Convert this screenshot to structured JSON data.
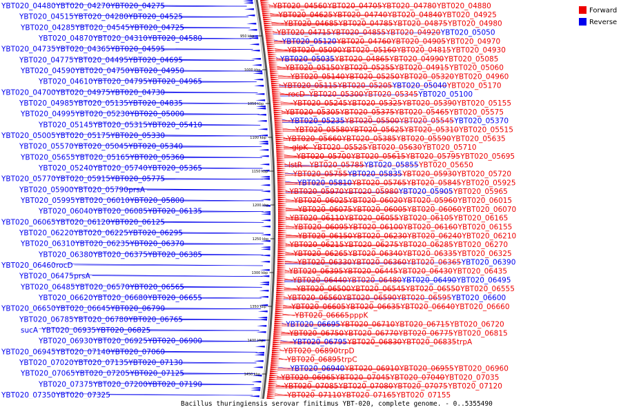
{
  "caption": "Bacillus thuringiensis serovar finitimus YBT-020, complete genome. - 0..5355490",
  "legend": [
    {
      "label": "Forward",
      "color": "#ee0000"
    },
    {
      "label": "Reverse",
      "color": "#0000ee"
    }
  ],
  "ticks": [
    "950 kbp",
    "1000 kbp",
    "1050 kbp",
    "1100 kbp",
    "1150 kbp",
    "1200 kbp",
    "1250 kbp",
    "1300 kbp",
    "1350 kbp",
    "1400 kbp",
    "1450 kbp"
  ],
  "labels": [
    {
      "t": "YBT020_04560",
      "s": "f"
    },
    {
      "t": "YBT020_04705",
      "s": "f"
    },
    {
      "t": "YBT020_04780",
      "s": "f"
    },
    {
      "t": "YBT020_04880",
      "s": "f"
    },
    {
      "t": "YBT020_04625",
      "s": "f"
    },
    {
      "t": "YBT020_04740",
      "s": "f"
    },
    {
      "t": "YBT020_04840",
      "s": "f"
    },
    {
      "t": "YBT020_04925",
      "s": "f"
    },
    {
      "t": "YBT020_04685",
      "s": "f"
    },
    {
      "t": "YBT020_04785",
      "s": "f"
    },
    {
      "t": "YBT020_04875",
      "s": "f"
    },
    {
      "t": "YBT020_04980",
      "s": "f"
    },
    {
      "t": "YBT020_04715",
      "s": "f"
    },
    {
      "t": "YBT020_04855",
      "s": "f"
    },
    {
      "t": "YBT020_04920",
      "s": "f"
    },
    {
      "t": "YBT020_05050",
      "s": "r"
    },
    {
      "t": "YBT020_05120",
      "s": "r"
    },
    {
      "t": "YBT020_04760",
      "s": "f"
    },
    {
      "t": "YBT020_04905",
      "s": "f"
    },
    {
      "t": "YBT020_04970",
      "s": "f"
    },
    {
      "t": "YBT020_05090",
      "s": "f"
    },
    {
      "t": "YBT020_05160",
      "s": "f"
    },
    {
      "t": "YBT020_04815",
      "s": "f"
    },
    {
      "t": "YBT020_04930",
      "s": "f"
    },
    {
      "t": "YBT020_05035",
      "s": "r"
    },
    {
      "t": "YBT020_04865",
      "s": "f"
    },
    {
      "t": "YBT020_04990",
      "s": "f"
    },
    {
      "t": "YBT020_05085",
      "s": "f"
    },
    {
      "t": "YBT020_05150",
      "s": "f"
    },
    {
      "t": "YBT020_05255",
      "s": "f"
    },
    {
      "t": "YBT020_04915",
      "s": "f"
    },
    {
      "t": "YBT020_05060",
      "s": "f"
    },
    {
      "t": "YBT020_05140",
      "s": "f"
    },
    {
      "t": "YBT020_05250",
      "s": "f"
    },
    {
      "t": "YBT020_05320",
      "s": "f"
    },
    {
      "t": "YBT020_04960",
      "s": "f"
    },
    {
      "t": "YBT020_05115",
      "s": "f"
    },
    {
      "t": "YBT020_05205",
      "s": "f"
    },
    {
      "t": "YBT020_05040",
      "s": "r"
    },
    {
      "t": "YBT020_05170",
      "s": "f"
    },
    {
      "t": "rocD",
      "s": "f"
    },
    {
      "t": "YBT020_05300",
      "s": "f"
    },
    {
      "t": "YBT020_05345",
      "s": "f"
    },
    {
      "t": "YBT020_05100",
      "s": "r"
    },
    {
      "t": "YBT020_05245",
      "s": "f"
    },
    {
      "t": "YBT020_05325",
      "s": "f"
    },
    {
      "t": "YBT020_05390",
      "s": "f"
    },
    {
      "t": "YBT020_05155",
      "s": "f"
    },
    {
      "t": "YBT020_05305",
      "s": "f"
    },
    {
      "t": "YBT020_05375",
      "s": "f"
    },
    {
      "t": "YBT020_05465",
      "s": "f"
    },
    {
      "t": "YBT020_05575",
      "s": "f"
    },
    {
      "t": "YBT020_05235",
      "s": "r"
    },
    {
      "t": "YBT020_05500",
      "s": "f"
    },
    {
      "t": "YBT020_05545",
      "s": "f"
    },
    {
      "t": "YBT020_05370",
      "s": "r"
    },
    {
      "t": "YBT020_05580",
      "s": "f"
    },
    {
      "t": "YBT020_05625",
      "s": "f"
    },
    {
      "t": "YBT020_05310",
      "s": "f"
    },
    {
      "t": "YBT020_05515",
      "s": "f"
    },
    {
      "t": "YBT020_05660",
      "s": "f"
    },
    {
      "t": "YBT020_05385",
      "s": "f"
    },
    {
      "t": "YBT020_05590",
      "s": "f"
    },
    {
      "t": "YBT020_05635",
      "s": "f"
    },
    {
      "t": "glpK",
      "s": "f"
    },
    {
      "t": "YBT020_05525",
      "s": "f"
    },
    {
      "t": "YBT020_05630",
      "s": "f"
    },
    {
      "t": "YBT020_05710",
      "s": "f"
    },
    {
      "t": "YBT020_05700",
      "s": "f"
    },
    {
      "t": "YBT020_05615",
      "s": "f"
    },
    {
      "t": "YBT020_05795",
      "s": "f"
    },
    {
      "t": "YBT020_05695",
      "s": "f"
    },
    {
      "t": "lstR",
      "s": "f"
    },
    {
      "t": "YBT020_05785",
      "s": "f"
    },
    {
      "t": "YBT020_05855",
      "s": "r"
    },
    {
      "t": "YBT020_05650",
      "s": "f"
    },
    {
      "t": "YBT020_05755",
      "s": "f"
    },
    {
      "t": "YBT020_05835",
      "s": "r"
    },
    {
      "t": "YBT020_05930",
      "s": "f"
    },
    {
      "t": "YBT020_05720",
      "s": "f"
    },
    {
      "t": "YBT020_05810",
      "s": "r"
    },
    {
      "t": "YBT020_05765",
      "s": "f"
    },
    {
      "t": "YBT020_05845",
      "s": "f"
    },
    {
      "t": "YBT020_05925",
      "s": "f"
    },
    {
      "t": "YBT020_05970",
      "s": "f"
    },
    {
      "t": "YBT020_05980",
      "s": "f"
    },
    {
      "t": "YBT020_05905",
      "s": "r"
    },
    {
      "t": "YBT020_05965",
      "s": "f"
    },
    {
      "t": "YBT020_06025",
      "s": "f"
    },
    {
      "t": "YBT020_06020",
      "s": "f"
    },
    {
      "t": "YBT020_05960",
      "s": "f"
    },
    {
      "t": "YBT020_06015",
      "s": "f"
    },
    {
      "t": "YBT020_06075",
      "s": "f"
    },
    {
      "t": "YBT020_06005",
      "s": "f"
    },
    {
      "t": "YBT020_06060",
      "s": "f"
    },
    {
      "t": "YBT020_06070",
      "s": "f"
    },
    {
      "t": "YBT020_06110",
      "s": "f"
    },
    {
      "t": "YBT020_06055",
      "s": "f"
    },
    {
      "t": "YBT020_06105",
      "s": "f"
    },
    {
      "t": "YBT020_06165",
      "s": "f"
    },
    {
      "t": "YBT020_06095",
      "s": "f"
    },
    {
      "t": "YBT020_06100",
      "s": "f"
    },
    {
      "t": "YBT020_06160",
      "s": "f"
    },
    {
      "t": "YBT020_06155",
      "s": "f"
    },
    {
      "t": "YBT020_06150",
      "s": "f"
    },
    {
      "t": "YBT020_06230",
      "s": "f"
    },
    {
      "t": "YBT020_06240",
      "s": "f"
    },
    {
      "t": "YBT020_06210",
      "s": "f"
    },
    {
      "t": "YBT020_06215",
      "s": "f"
    },
    {
      "t": "YBT020_06275",
      "s": "f"
    },
    {
      "t": "YBT020_06285",
      "s": "f"
    },
    {
      "t": "YBT020_06270",
      "s": "f"
    },
    {
      "t": "YBT020_06265",
      "s": "f"
    },
    {
      "t": "YBT020_06340",
      "s": "f"
    },
    {
      "t": "YBT020_06335",
      "s": "f"
    },
    {
      "t": "YBT020_06325",
      "s": "f"
    },
    {
      "t": "YBT020_06330",
      "s": "f"
    },
    {
      "t": "YBT020_06360",
      "s": "f"
    },
    {
      "t": "YBT020_06365",
      "s": "f"
    },
    {
      "t": "YBT020_06390",
      "s": "r"
    },
    {
      "t": "YBT020_06395",
      "s": "f"
    },
    {
      "t": "YBT020_06445",
      "s": "f"
    },
    {
      "t": "YBT020_06430",
      "s": "f"
    },
    {
      "t": "YBT020_06435",
      "s": "f"
    },
    {
      "t": "YBT020_06440",
      "s": "f"
    },
    {
      "t": "YBT020_06480",
      "s": "f"
    },
    {
      "t": "YBT020_06490",
      "s": "r"
    },
    {
      "t": "YBT020_06495",
      "s": "r"
    },
    {
      "t": "YBT020_06500",
      "s": "f"
    },
    {
      "t": "YBT020_06545",
      "s": "f"
    },
    {
      "t": "YBT020_06550",
      "s": "f"
    },
    {
      "t": "YBT020_06555",
      "s": "f"
    },
    {
      "t": "YBT020_06560",
      "s": "f"
    },
    {
      "t": "YBT020_06590",
      "s": "f"
    },
    {
      "t": "YBT020_06595",
      "s": "f"
    },
    {
      "t": "YBT020_06600",
      "s": "r"
    },
    {
      "t": "YBT020_06605",
      "s": "f"
    },
    {
      "t": "YBT020_06635",
      "s": "f"
    },
    {
      "t": "YBT020_06640",
      "s": "f"
    },
    {
      "t": "YBT020_06660",
      "s": "f"
    },
    {
      "t": "YBT020_06665",
      "s": "f"
    },
    {
      "t": "pppK",
      "s": "f"
    },
    {
      "t": "YBT020_06695",
      "s": "r"
    },
    {
      "t": "YBT020_06710",
      "s": "f"
    },
    {
      "t": "YBT020_06715",
      "s": "f"
    },
    {
      "t": "YBT020_06720",
      "s": "f"
    },
    {
      "t": "YBT020_06750",
      "s": "f"
    },
    {
      "t": "YBT020_06770",
      "s": "f"
    },
    {
      "t": "YBT020_06775",
      "s": "f"
    },
    {
      "t": "YBT020_06815",
      "s": "f"
    },
    {
      "t": "YBT020_06795",
      "s": "r"
    },
    {
      "t": "YBT020_06830",
      "s": "f"
    },
    {
      "t": "YBT020_06835",
      "s": "f"
    },
    {
      "t": "trpA",
      "s": "f"
    },
    {
      "t": "YBT020_06890",
      "s": "f"
    },
    {
      "t": "trpD",
      "s": "f"
    },
    {
      "t": "YBT020_06895",
      "s": "f"
    },
    {
      "t": "trpC",
      "s": "f"
    },
    {
      "t": "YBT020_06940",
      "s": "r"
    },
    {
      "t": "YBT020_06910",
      "s": "f"
    },
    {
      "t": "YBT020_06955",
      "s": "f"
    },
    {
      "t": "YBT020_06960",
      "s": "f"
    },
    {
      "t": "YBT020_06965",
      "s": "f"
    },
    {
      "t": "YBT020_07045",
      "s": "f"
    },
    {
      "t": "YBT020_07040",
      "s": "f"
    },
    {
      "t": "YBT020_07035",
      "s": "f"
    },
    {
      "t": "YBT020_07085",
      "s": "f"
    },
    {
      "t": "YBT020_07080",
      "s": "f"
    },
    {
      "t": "YBT020_07075",
      "s": "f"
    },
    {
      "t": "YBT020_07120",
      "s": "f"
    },
    {
      "t": "YBT020_07110",
      "s": "f"
    },
    {
      "t": "YBT020_07165",
      "s": "f"
    },
    {
      "t": "YBT020_07155",
      "s": "f"
    },
    {
      "t": "YBT020_04480",
      "s": "r"
    },
    {
      "t": "YBT020_04270",
      "s": "r"
    },
    {
      "t": "YBT020_04275",
      "s": "r"
    },
    {
      "t": "YBT020_04515",
      "s": "r"
    },
    {
      "t": "YBT020_04280",
      "s": "r"
    },
    {
      "t": "YBT020_04525",
      "s": "r"
    },
    {
      "t": "YBT020_04285",
      "s": "r"
    },
    {
      "t": "YBT020_04545",
      "s": "r"
    },
    {
      "t": "YBT020_04725",
      "s": "r"
    },
    {
      "t": "YBT020_04870",
      "s": "r"
    },
    {
      "t": "YBT020_04310",
      "s": "r"
    },
    {
      "t": "YBT020_04580",
      "s": "r"
    },
    {
      "t": "YBT020_04735",
      "s": "r"
    },
    {
      "t": "YBT020_04365",
      "s": "r"
    },
    {
      "t": "YBT020_04595",
      "s": "r"
    },
    {
      "t": "YBT020_04775",
      "s": "r"
    },
    {
      "t": "YBT020_04495",
      "s": "r"
    },
    {
      "t": "YBT020_04695",
      "s": "r"
    },
    {
      "t": "YBT020_04590",
      "s": "r"
    },
    {
      "t": "YBT020_04750",
      "s": "r"
    },
    {
      "t": "YBT020_04950",
      "s": "r"
    },
    {
      "t": "YBT020_04610",
      "s": "r"
    },
    {
      "t": "YBT020_04795",
      "s": "r"
    },
    {
      "t": "YBT020_04965",
      "s": "r"
    },
    {
      "t": "YBT020_04700",
      "s": "r"
    },
    {
      "t": "YBT020_04975",
      "s": "r"
    },
    {
      "t": "YBT020_04730",
      "s": "r"
    },
    {
      "t": "YBT020_04985",
      "s": "r"
    },
    {
      "t": "YBT020_05135",
      "s": "r"
    },
    {
      "t": "YBT020_04835",
      "s": "r"
    },
    {
      "t": "YBT020_04995",
      "s": "r"
    },
    {
      "t": "YBT020_05230",
      "s": "r"
    },
    {
      "t": "YBT020_05000",
      "s": "r"
    },
    {
      "t": "YBT020_05145",
      "s": "r"
    },
    {
      "t": "YBT020_05315",
      "s": "r"
    },
    {
      "t": "YBT020_05410",
      "s": "r"
    },
    {
      "t": "YBT020_05005",
      "s": "r"
    },
    {
      "t": "YBT020_05175",
      "s": "r"
    },
    {
      "t": "YBT020_05330",
      "s": "r"
    },
    {
      "t": "YBT020_05570",
      "s": "r"
    },
    {
      "t": "YBT020_05045",
      "s": "r"
    },
    {
      "t": "YBT020_05340",
      "s": "r"
    },
    {
      "t": "YBT020_05655",
      "s": "r"
    },
    {
      "t": "YBT020_05165",
      "s": "r"
    },
    {
      "t": "YBT020_05360",
      "s": "r"
    },
    {
      "t": "YBT020_05240",
      "s": "r"
    },
    {
      "t": "YBT020_05740",
      "s": "r"
    },
    {
      "t": "YBT020_05365",
      "s": "r"
    },
    {
      "t": "YBT020_05770",
      "s": "r"
    },
    {
      "t": "YBT020_05915",
      "s": "r"
    },
    {
      "t": "YBT020_05775",
      "s": "r"
    },
    {
      "t": "YBT020_05900",
      "s": "r"
    },
    {
      "t": "YBT020_05790",
      "s": "r"
    },
    {
      "t": "prsA",
      "s": "r"
    },
    {
      "t": "YBT020_05995",
      "s": "r"
    },
    {
      "t": "YBT020_06010",
      "s": "r"
    },
    {
      "t": "YBT020_05800",
      "s": "r"
    },
    {
      "t": "YBT020_06040",
      "s": "r"
    },
    {
      "t": "YBT020_06085",
      "s": "r"
    },
    {
      "t": "YBT020_06135",
      "s": "r"
    },
    {
      "t": "YBT020_06065",
      "s": "r"
    },
    {
      "t": "YBT020_06120",
      "s": "r"
    },
    {
      "t": "YBT020_06125",
      "s": "r"
    },
    {
      "t": "YBT020_06220",
      "s": "r"
    },
    {
      "t": "YBT020_06225",
      "s": "r"
    },
    {
      "t": "YBT020_06295",
      "s": "r"
    },
    {
      "t": "YBT020_06310",
      "s": "r"
    },
    {
      "t": "YBT020_06235",
      "s": "r"
    },
    {
      "t": "YBT020_06370",
      "s": "r"
    },
    {
      "t": "YBT020_06380",
      "s": "r"
    },
    {
      "t": "YBT020_06375",
      "s": "r"
    },
    {
      "t": "YBT020_06385",
      "s": "r"
    },
    {
      "t": "YBT020_06460",
      "s": "r"
    },
    {
      "t": "rocD",
      "s": "r"
    },
    {
      "t": "YBT020_06475",
      "s": "r"
    },
    {
      "t": "prsA",
      "s": "r"
    },
    {
      "t": "YBT020_06485",
      "s": "r"
    },
    {
      "t": "YBT020_06570",
      "s": "r"
    },
    {
      "t": "YBT020_06565",
      "s": "r"
    },
    {
      "t": "YBT020_06620",
      "s": "r"
    },
    {
      "t": "YBT020_06680",
      "s": "r"
    },
    {
      "t": "YBT020_06655",
      "s": "r"
    },
    {
      "t": "YBT020_06650",
      "s": "r"
    },
    {
      "t": "YBT020_06645",
      "s": "r"
    },
    {
      "t": "YBT020_06790",
      "s": "r"
    },
    {
      "t": "YBT020_06785",
      "s": "r"
    },
    {
      "t": "YBT020_06780",
      "s": "r"
    },
    {
      "t": "YBT020_06765",
      "s": "r"
    },
    {
      "t": "sucA",
      "s": "r"
    },
    {
      "t": "YBT020_06935",
      "s": "r"
    },
    {
      "t": "YBT020_06825",
      "s": "r"
    },
    {
      "t": "YBT020_06930",
      "s": "r"
    },
    {
      "t": "YBT020_06925",
      "s": "r"
    },
    {
      "t": "YBT020_06900",
      "s": "r"
    },
    {
      "t": "YBT020_06945",
      "s": "r"
    },
    {
      "t": "YBT020_07140",
      "s": "r"
    },
    {
      "t": "YBT020_07060",
      "s": "r"
    },
    {
      "t": "YBT020_07020",
      "s": "r"
    },
    {
      "t": "YBT020_07135",
      "s": "r"
    },
    {
      "t": "YBT020_07130",
      "s": "r"
    },
    {
      "t": "YBT020_07065",
      "s": "r"
    },
    {
      "t": "YBT020_07205",
      "s": "r"
    },
    {
      "t": "YBT020_07125",
      "s": "r"
    },
    {
      "t": "YBT020_07375",
      "s": "r"
    },
    {
      "t": "YBT020_07200",
      "s": "r"
    },
    {
      "t": "YBT020_07190",
      "s": "r"
    },
    {
      "t": "YBT020_07350",
      "s": "r"
    },
    {
      "t": "YBT020_07325",
      "s": "r"
    }
  ]
}
